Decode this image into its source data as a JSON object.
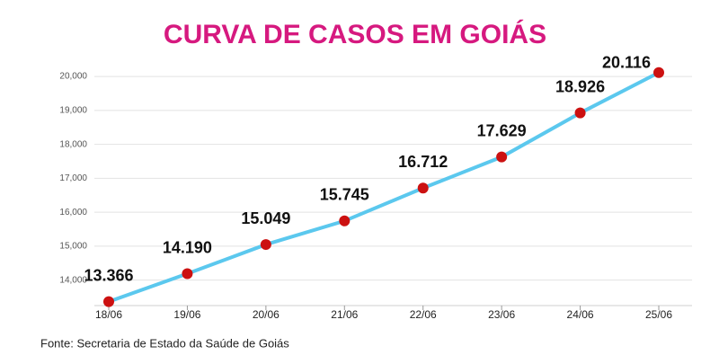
{
  "chart_data": {
    "type": "line",
    "title": "CURVA DE CASOS EM GOIÁS",
    "categories": [
      "18/06",
      "19/06",
      "20/06",
      "21/06",
      "22/06",
      "23/06",
      "24/06",
      "25/06"
    ],
    "values": [
      13366,
      14190,
      15049,
      15745,
      16712,
      17629,
      18926,
      20116
    ],
    "value_labels": [
      "13.366",
      "14.190",
      "15.049",
      "15.745",
      "16.712",
      "17.629",
      "18.926",
      "20.116"
    ],
    "color": "#5bc8ee",
    "marker_color": "#cc1111",
    "ylim": [
      13250,
      20400
    ],
    "yticks": [
      {
        "value": 14000,
        "label": "14,000"
      },
      {
        "value": 15000,
        "label": "15,000"
      },
      {
        "value": 16000,
        "label": "16,000"
      },
      {
        "value": 17000,
        "label": "17,000"
      },
      {
        "value": 18000,
        "label": "18,000"
      },
      {
        "value": 19000,
        "label": "19,000"
      },
      {
        "value": 20000,
        "label": "20,000"
      }
    ],
    "grid": true,
    "source": "Fonte: Secretaria de Estado da Saúde de Goiás"
  }
}
